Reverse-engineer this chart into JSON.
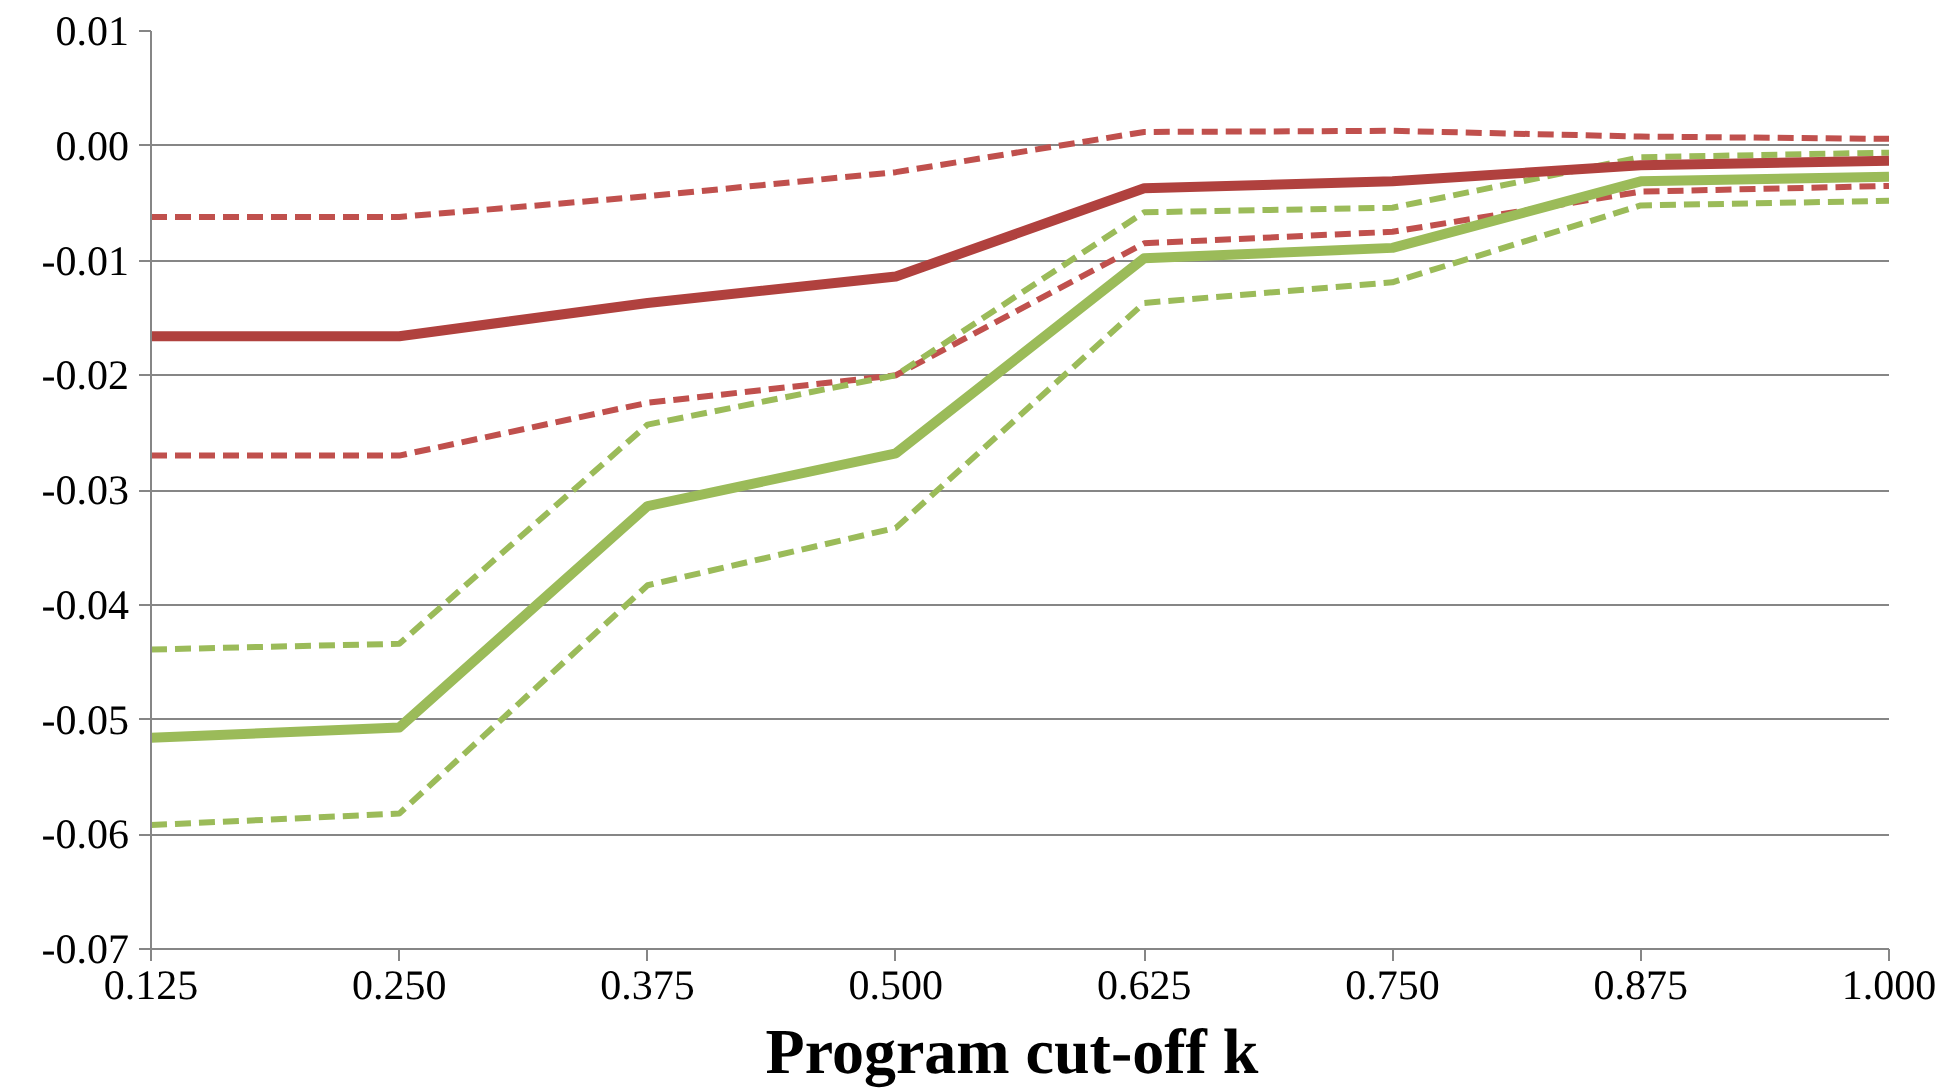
{
  "chart_data": {
    "type": "line",
    "xlabel": "Program cut-off  k",
    "categories": [
      "0.125",
      "0.250",
      "0.375",
      "0.500",
      "0.625",
      "0.750",
      "0.875",
      "1.000"
    ],
    "series": [
      {
        "color": "#c0504d",
        "line_style": "dashed",
        "values": [
          -0.0062,
          -0.0062,
          -0.0044,
          -0.0023,
          0.0012,
          0.0013,
          0.0008,
          0.0006
        ]
      },
      {
        "color": "#c0504d",
        "line_style": "dashed",
        "values": [
          -0.027,
          -0.027,
          -0.0224,
          -0.02,
          -0.0085,
          -0.0075,
          -0.004,
          -0.0035
        ]
      },
      {
        "color": "#9bbb59",
        "line_style": "dashed",
        "values": [
          -0.0439,
          -0.0434,
          -0.0243,
          -0.02,
          -0.0058,
          -0.0054,
          -0.001,
          -0.0006
        ]
      },
      {
        "color": "#9bbb59",
        "line_style": "dashed",
        "values": [
          -0.0592,
          -0.0582,
          -0.0383,
          -0.0333,
          -0.0137,
          -0.0119,
          -0.0052,
          -0.0048
        ]
      },
      {
        "color": "#b0413e",
        "line_style": "solid",
        "values": [
          -0.0166,
          -0.0166,
          -0.0137,
          -0.0114,
          -0.0037,
          -0.0031,
          -0.0017,
          -0.0013
        ]
      },
      {
        "color": "#9bbb59",
        "line_style": "solid",
        "values": [
          -0.0516,
          -0.0507,
          -0.0314,
          -0.0268,
          -0.0098,
          -0.0089,
          -0.0031,
          -0.0027
        ]
      }
    ],
    "ylim": [
      -0.07,
      0.01
    ],
    "yticks": [
      {
        "value": 0.01,
        "label": "0.01"
      },
      {
        "value": 0.0,
        "label": "0.00"
      },
      {
        "value": -0.01,
        "label": "-0.01"
      },
      {
        "value": -0.02,
        "label": "-0.02"
      },
      {
        "value": -0.03,
        "label": "-0.03"
      },
      {
        "value": -0.04,
        "label": "-0.04"
      },
      {
        "value": -0.05,
        "label": "-0.05"
      },
      {
        "value": -0.06,
        "label": "-0.06"
      },
      {
        "value": -0.07,
        "label": "-0.07"
      }
    ],
    "grid": "y"
  }
}
